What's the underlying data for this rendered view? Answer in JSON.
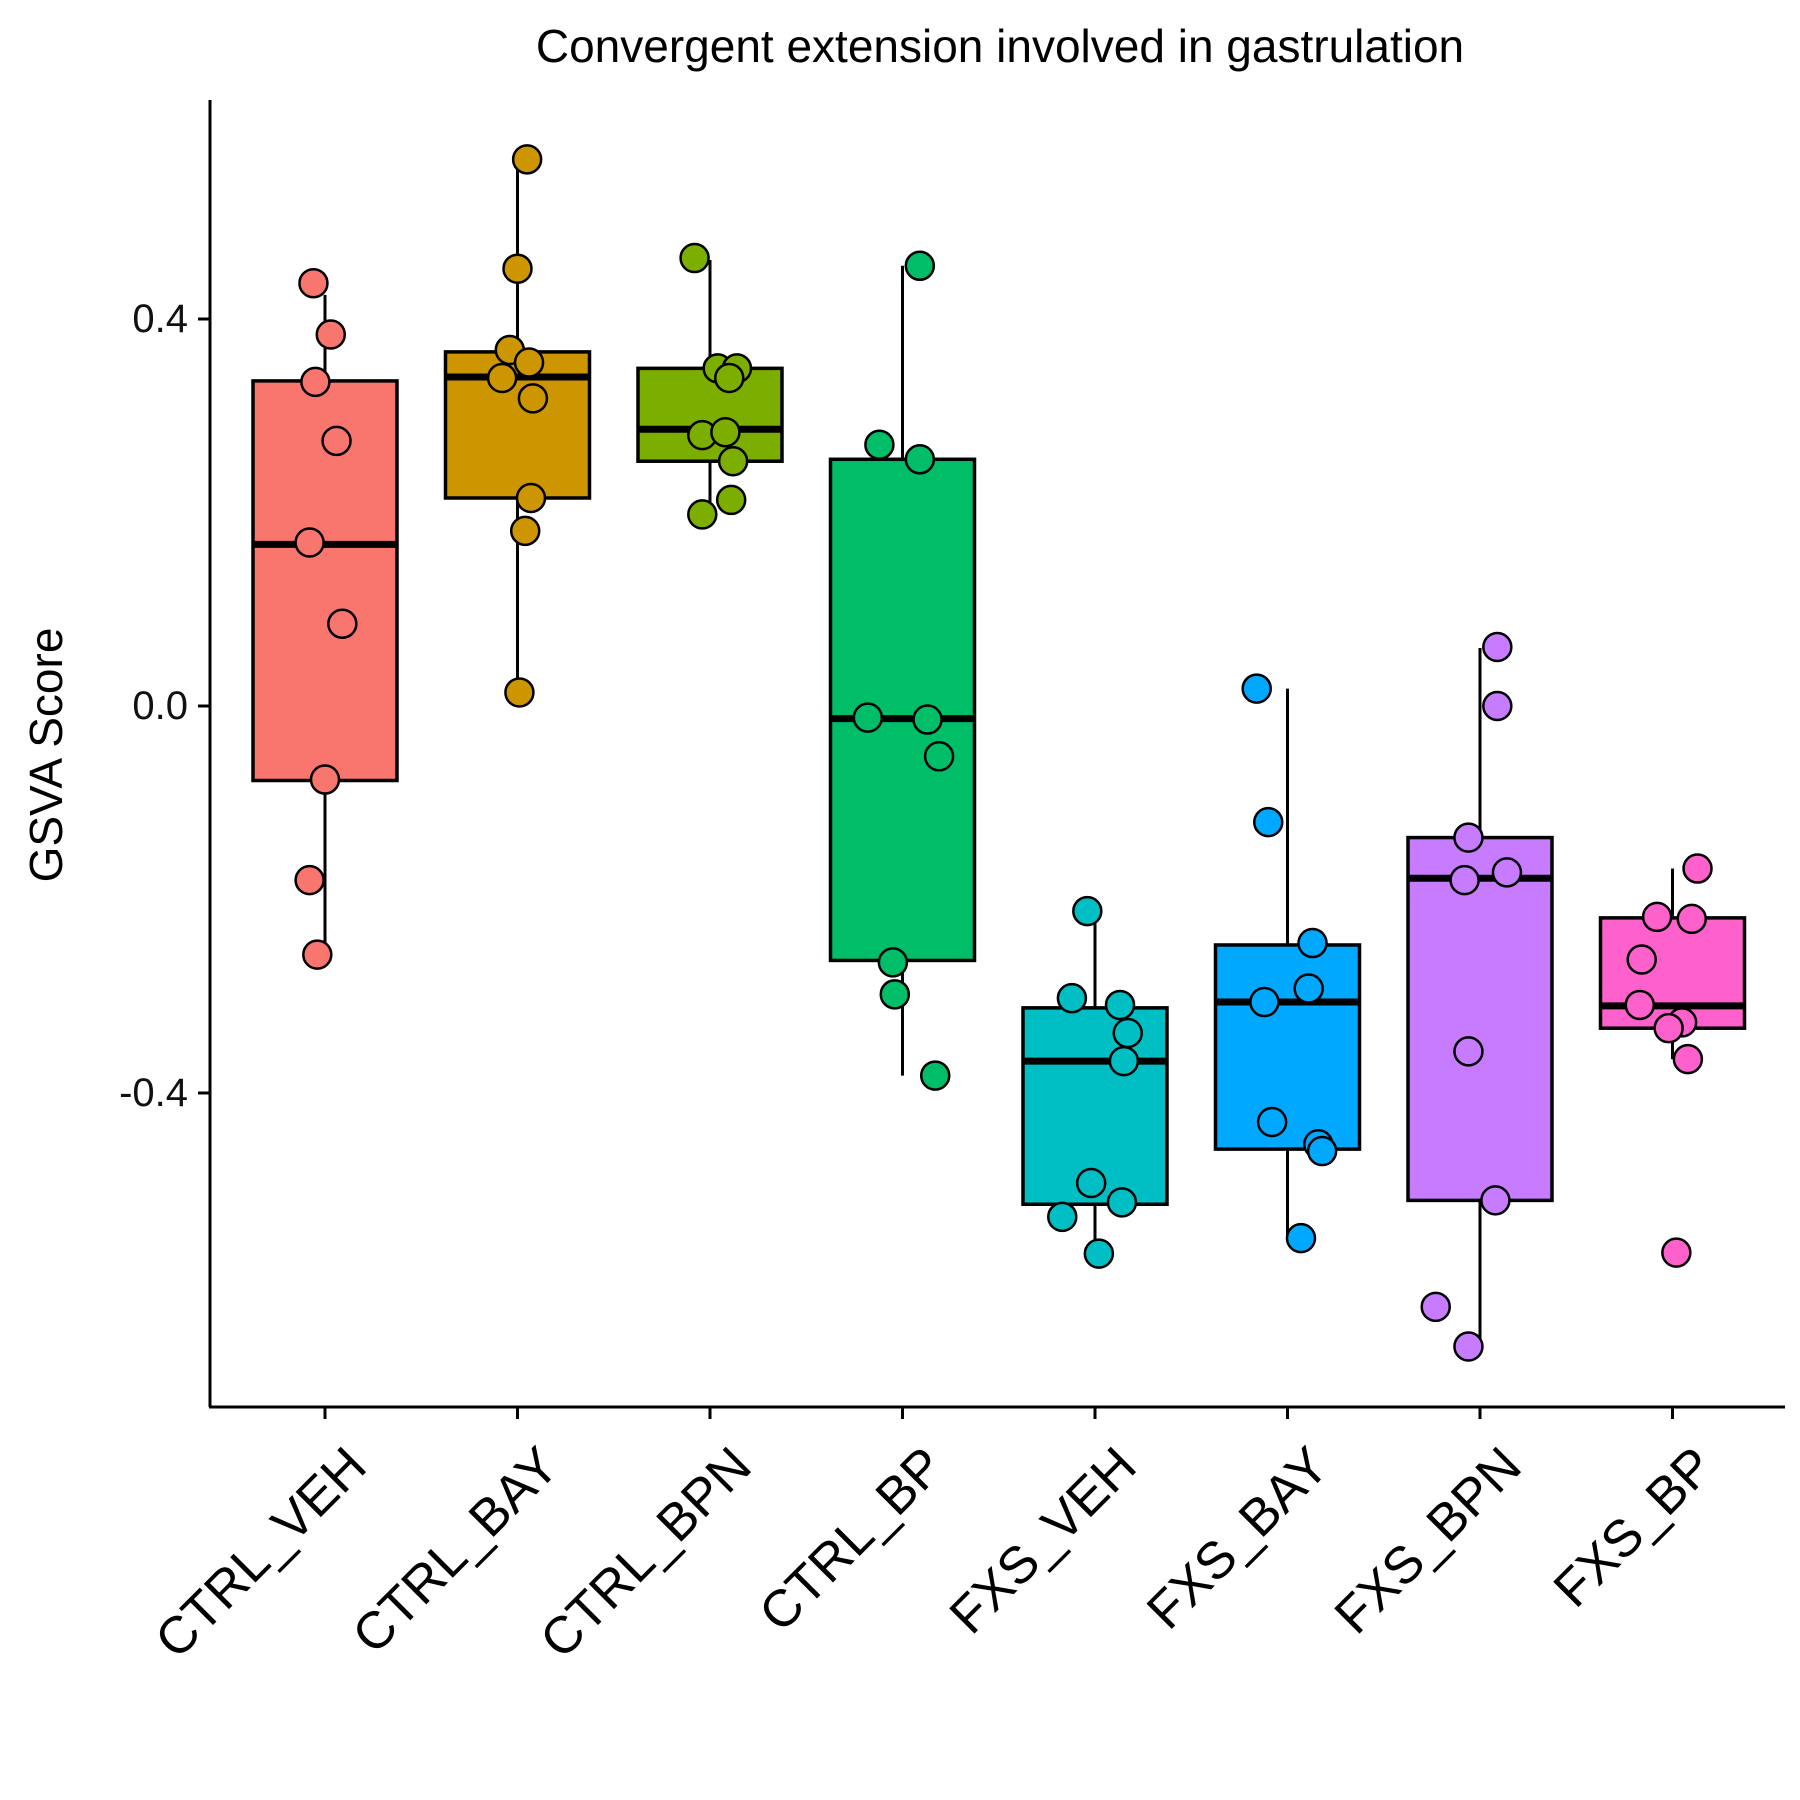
{
  "chart_data": {
    "type": "box",
    "title": "Convergent extension involved in gastrulation",
    "xlabel": "",
    "ylabel": "GSVA Score",
    "ylim": [
      -0.72,
      0.62
    ],
    "y_ticks": [
      {
        "value": 0.4,
        "label": "0.4"
      },
      {
        "value": 0.0,
        "label": "0.0"
      },
      {
        "value": -0.4,
        "label": "-0.4"
      }
    ],
    "grid": false,
    "legend": "none",
    "categories": [
      "CTRL_VEH",
      "CTRL_BAY",
      "CTRL_BPN",
      "CTRL_BP",
      "FXS_VEH",
      "FXS_BAY",
      "FXS_BPN",
      "FXS_BP"
    ],
    "series": [
      {
        "color": "#F8766D",
        "box": {
          "whisker_low": -0.257,
          "q1": -0.077,
          "median": 0.167,
          "q3": 0.336,
          "whisker_high": 0.425
        },
        "points": [
          {
            "jitter": -0.06,
            "y": 0.437
          },
          {
            "jitter": 0.03,
            "y": 0.384
          },
          {
            "jitter": -0.05,
            "y": 0.335
          },
          {
            "jitter": 0.06,
            "y": 0.274
          },
          {
            "jitter": -0.08,
            "y": 0.169
          },
          {
            "jitter": 0.09,
            "y": 0.085
          },
          {
            "jitter": 0.0,
            "y": -0.076
          },
          {
            "jitter": -0.08,
            "y": -0.18
          },
          {
            "jitter": -0.04,
            "y": -0.257
          }
        ]
      },
      {
        "color": "#CD9600",
        "box": {
          "whisker_low": 0.014,
          "q1": 0.215,
          "median": 0.34,
          "q3": 0.366,
          "whisker_high": 0.563
        },
        "points": [
          {
            "jitter": 0.05,
            "y": 0.565
          },
          {
            "jitter": 0.0,
            "y": 0.452
          },
          {
            "jitter": -0.04,
            "y": 0.368
          },
          {
            "jitter": 0.06,
            "y": 0.355
          },
          {
            "jitter": -0.08,
            "y": 0.339
          },
          {
            "jitter": 0.08,
            "y": 0.318
          },
          {
            "jitter": 0.07,
            "y": 0.215
          },
          {
            "jitter": 0.04,
            "y": 0.181
          },
          {
            "jitter": 0.01,
            "y": 0.014
          }
        ]
      },
      {
        "color": "#7CAE00",
        "box": {
          "whisker_low": 0.198,
          "q1": 0.253,
          "median": 0.286,
          "q3": 0.349,
          "whisker_high": 0.461
        },
        "points": [
          {
            "jitter": -0.08,
            "y": 0.463
          },
          {
            "jitter": 0.04,
            "y": 0.349
          },
          {
            "jitter": 0.14,
            "y": 0.349
          },
          {
            "jitter": 0.1,
            "y": 0.339
          },
          {
            "jitter": -0.04,
            "y": 0.28
          },
          {
            "jitter": 0.08,
            "y": 0.283
          },
          {
            "jitter": 0.12,
            "y": 0.253
          },
          {
            "jitter": 0.11,
            "y": 0.213
          },
          {
            "jitter": -0.04,
            "y": 0.198
          }
        ]
      },
      {
        "color": "#00BE67",
        "box": {
          "whisker_low": -0.382,
          "q1": -0.263,
          "median": -0.013,
          "q3": 0.255,
          "whisker_high": 0.455
        },
        "points": [
          {
            "jitter": 0.09,
            "y": 0.455
          },
          {
            "jitter": -0.12,
            "y": 0.27
          },
          {
            "jitter": 0.09,
            "y": 0.255
          },
          {
            "jitter": -0.18,
            "y": -0.012
          },
          {
            "jitter": 0.13,
            "y": -0.014
          },
          {
            "jitter": 0.19,
            "y": -0.052
          },
          {
            "jitter": -0.05,
            "y": -0.265
          },
          {
            "jitter": -0.04,
            "y": -0.298
          },
          {
            "jitter": 0.17,
            "y": -0.382
          }
        ]
      },
      {
        "color": "#00BFC4",
        "box": {
          "whisker_low": -0.566,
          "q1": -0.515,
          "median": -0.367,
          "q3": -0.312,
          "whisker_high": -0.212
        },
        "points": [
          {
            "jitter": -0.04,
            "y": -0.212
          },
          {
            "jitter": -0.12,
            "y": -0.302
          },
          {
            "jitter": 0.13,
            "y": -0.309
          },
          {
            "jitter": 0.17,
            "y": -0.338
          },
          {
            "jitter": 0.15,
            "y": -0.367
          },
          {
            "jitter": -0.02,
            "y": -0.493
          },
          {
            "jitter": 0.14,
            "y": -0.513
          },
          {
            "jitter": -0.17,
            "y": -0.528
          },
          {
            "jitter": 0.02,
            "y": -0.566
          }
        ]
      },
      {
        "color": "#00A9FF",
        "box": {
          "whisker_low": -0.552,
          "q1": -0.458,
          "median": -0.306,
          "q3": -0.247,
          "whisker_high": 0.018
        },
        "points": [
          {
            "jitter": -0.16,
            "y": 0.018
          },
          {
            "jitter": -0.1,
            "y": -0.12
          },
          {
            "jitter": 0.13,
            "y": -0.245
          },
          {
            "jitter": 0.11,
            "y": -0.292
          },
          {
            "jitter": -0.12,
            "y": -0.306
          },
          {
            "jitter": -0.08,
            "y": -0.43
          },
          {
            "jitter": 0.16,
            "y": -0.453
          },
          {
            "jitter": 0.18,
            "y": -0.46
          },
          {
            "jitter": 0.07,
            "y": -0.55
          }
        ]
      },
      {
        "color": "#C77CFF",
        "box": {
          "whisker_low": -0.66,
          "q1": -0.511,
          "median": -0.178,
          "q3": -0.136,
          "whisker_high": 0.06
        },
        "points": [
          {
            "jitter": 0.09,
            "y": 0.061
          },
          {
            "jitter": 0.09,
            "y": 0.0
          },
          {
            "jitter": -0.06,
            "y": -0.136
          },
          {
            "jitter": 0.14,
            "y": -0.172
          },
          {
            "jitter": -0.08,
            "y": -0.18
          },
          {
            "jitter": -0.06,
            "y": -0.357
          },
          {
            "jitter": 0.08,
            "y": -0.511
          },
          {
            "jitter": -0.23,
            "y": -0.621
          },
          {
            "jitter": -0.06,
            "y": -0.662
          }
        ]
      },
      {
        "color": "#FF61CC",
        "box": {
          "whisker_low": -0.365,
          "q1": -0.333,
          "median": -0.31,
          "q3": -0.219,
          "whisker_high": -0.168
        },
        "points": [
          {
            "jitter": 0.13,
            "y": -0.168
          },
          {
            "jitter": -0.08,
            "y": -0.218
          },
          {
            "jitter": 0.1,
            "y": -0.22
          },
          {
            "jitter": -0.16,
            "y": -0.262
          },
          {
            "jitter": -0.17,
            "y": -0.309
          },
          {
            "jitter": 0.05,
            "y": -0.327
          },
          {
            "jitter": -0.02,
            "y": -0.333
          },
          {
            "jitter": 0.08,
            "y": -0.365
          },
          {
            "jitter": 0.02,
            "y": -0.565
          }
        ]
      }
    ]
  }
}
